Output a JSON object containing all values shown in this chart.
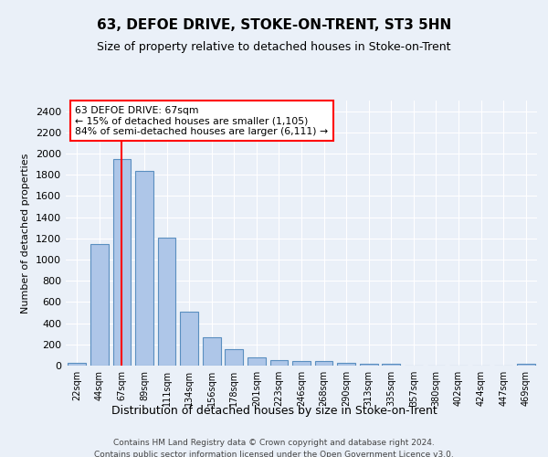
{
  "title": "63, DEFOE DRIVE, STOKE-ON-TRENT, ST3 5HN",
  "subtitle": "Size of property relative to detached houses in Stoke-on-Trent",
  "xlabel": "Distribution of detached houses by size in Stoke-on-Trent",
  "ylabel": "Number of detached properties",
  "categories": [
    "22sqm",
    "44sqm",
    "67sqm",
    "89sqm",
    "111sqm",
    "134sqm",
    "156sqm",
    "178sqm",
    "201sqm",
    "223sqm",
    "246sqm",
    "268sqm",
    "290sqm",
    "313sqm",
    "335sqm",
    "357sqm",
    "380sqm",
    "402sqm",
    "424sqm",
    "447sqm",
    "469sqm"
  ],
  "values": [
    30,
    1145,
    1950,
    1840,
    1210,
    510,
    270,
    155,
    80,
    48,
    42,
    40,
    22,
    18,
    18,
    0,
    0,
    0,
    0,
    0,
    18
  ],
  "bar_color": "#aec6e8",
  "bar_edge_color": "#5a8fc0",
  "vline_x_index": 2,
  "vline_color": "red",
  "annotation_text": "63 DEFOE DRIVE: 67sqm\n← 15% of detached houses are smaller (1,105)\n84% of semi-detached houses are larger (6,111) →",
  "annotation_box_color": "white",
  "annotation_box_edge_color": "red",
  "ylim": [
    0,
    2500
  ],
  "yticks": [
    0,
    200,
    400,
    600,
    800,
    1000,
    1200,
    1400,
    1600,
    1800,
    2000,
    2200,
    2400
  ],
  "bg_color": "#eaf0f8",
  "plot_bg_color": "#eaf0f8",
  "footer1": "Contains HM Land Registry data © Crown copyright and database right 2024.",
  "footer2": "Contains public sector information licensed under the Open Government Licence v3.0."
}
